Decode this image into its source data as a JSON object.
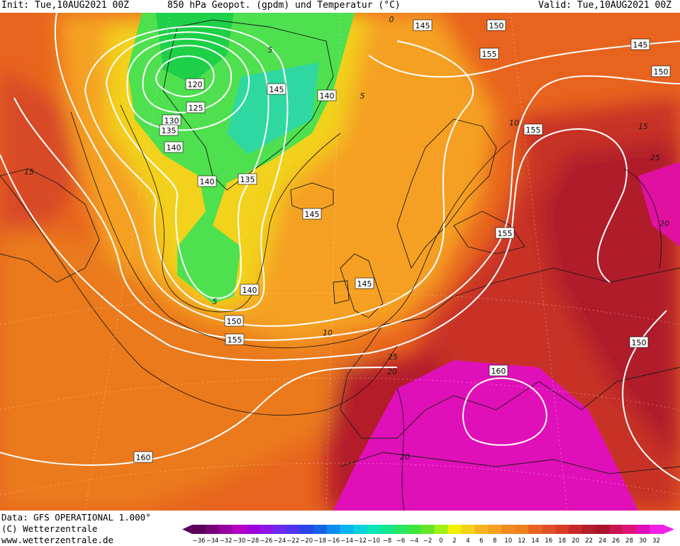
{
  "header": {
    "init": "Init: Tue,10AUG2021 00Z",
    "title": "850 hPa Geopot. (gpdm) und Temperatur (°C)",
    "valid": "Valid: Tue,10AUG2021 00Z"
  },
  "footer": {
    "data_line": "Data: GFS OPERATIONAL 1.000°",
    "copyright": "(C) Wetterzentrale",
    "url": "www.wetterzentrale.de"
  },
  "colors": {
    "cold_core": "#1ee05a",
    "cool": "#5fe85f",
    "mild": "#f2d21a",
    "warm": "#f5a020",
    "orange": "#f0801e",
    "hot": "#d83c28",
    "very_hot": "#a8142a",
    "extreme": "#e010b8",
    "contour": "#ffffff",
    "coast": "#1a1a1a"
  },
  "colorbar": {
    "ticks": [
      "−36",
      "−34",
      "−32",
      "−30",
      "−28",
      "−26",
      "−24",
      "−22",
      "−20",
      "−18",
      "−16",
      "−14",
      "−12",
      "−10",
      "−8",
      "−6",
      "−4",
      "−2",
      "0",
      "2",
      "4",
      "6",
      "8",
      "10",
      "12",
      "14",
      "16",
      "18",
      "20",
      "22",
      "24",
      "26",
      "28",
      "30",
      "32"
    ],
    "colors": [
      "#5a005a",
      "#780078",
      "#9600a0",
      "#b400c8",
      "#a000d8",
      "#8c14e6",
      "#6e28f0",
      "#5032f0",
      "#2846e6",
      "#1464e6",
      "#0a8cf0",
      "#0ab4f0",
      "#0ad2dc",
      "#0ae6b4",
      "#14e68c",
      "#28e664",
      "#3ce63c",
      "#64e628",
      "#a0f014",
      "#f0f000",
      "#f2d21a",
      "#f5b41e",
      "#f5a020",
      "#f08c1e",
      "#f0801e",
      "#e8641e",
      "#e05028",
      "#d83c28",
      "#c82828",
      "#b41e2a",
      "#a8142a",
      "#c81450",
      "#e01478",
      "#e010b8",
      "#f020e6"
    ]
  },
  "geopotential_labels": [
    {
      "text": "145"
    },
    {
      "text": "150"
    },
    {
      "text": "145"
    },
    {
      "text": "155"
    },
    {
      "text": "150"
    },
    {
      "text": "120"
    },
    {
      "text": "125"
    },
    {
      "text": "130"
    },
    {
      "text": "135"
    },
    {
      "text": "145"
    },
    {
      "text": "140"
    },
    {
      "text": "155"
    },
    {
      "text": "140"
    },
    {
      "text": "140"
    },
    {
      "text": "135"
    },
    {
      "text": "145"
    },
    {
      "text": "155"
    },
    {
      "text": "145"
    },
    {
      "text": "140"
    },
    {
      "text": "150"
    },
    {
      "text": "155"
    },
    {
      "text": "150"
    },
    {
      "text": "160"
    },
    {
      "text": "160"
    }
  ],
  "temperature_labels": [
    {
      "text": "0"
    },
    {
      "text": "5"
    },
    {
      "text": "5"
    },
    {
      "text": "10"
    },
    {
      "text": "15"
    },
    {
      "text": "25"
    },
    {
      "text": "15"
    },
    {
      "text": "20"
    },
    {
      "text": "5"
    },
    {
      "text": "10"
    },
    {
      "text": "20"
    },
    {
      "text": "20"
    },
    {
      "text": "25"
    }
  ]
}
